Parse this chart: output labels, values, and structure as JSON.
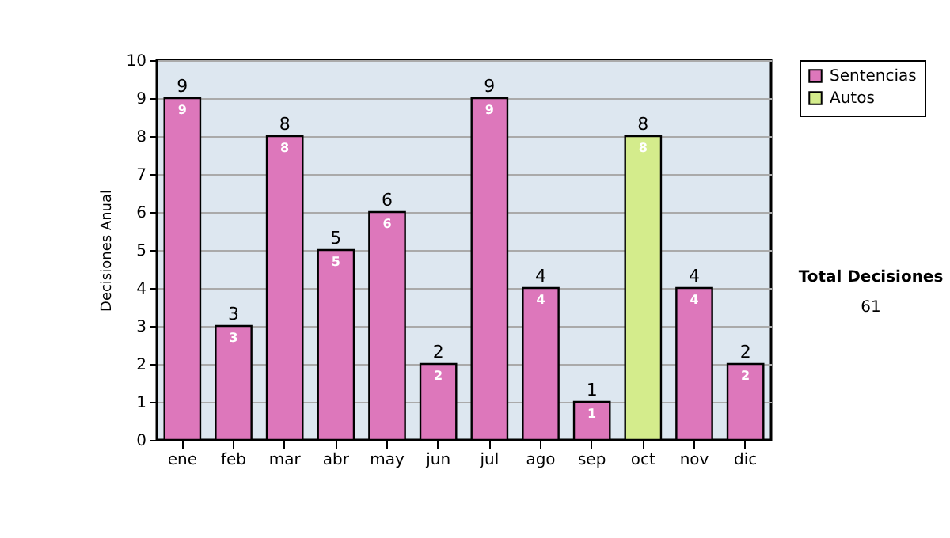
{
  "chart_data": {
    "type": "bar",
    "ylabel": "Decisiones Anual",
    "categories": [
      "ene",
      "feb",
      "mar",
      "abr",
      "may",
      "jun",
      "jul",
      "ago",
      "sep",
      "oct",
      "nov",
      "dic"
    ],
    "series": [
      {
        "name": "Sentencias",
        "color": "#dd77bb",
        "values": [
          9,
          3,
          8,
          5,
          6,
          2,
          9,
          4,
          1,
          null,
          4,
          2
        ]
      },
      {
        "name": "Autos",
        "color": "#d4ec8c",
        "values": [
          null,
          null,
          null,
          null,
          null,
          null,
          null,
          null,
          null,
          8,
          null,
          null
        ]
      }
    ],
    "ylim": [
      0,
      10
    ],
    "yticks": [
      0,
      1,
      2,
      3,
      4,
      5,
      6,
      7,
      8,
      9,
      10
    ],
    "grid": "y",
    "legend": "right",
    "data_labels": true,
    "annotations": [
      {
        "text": "9",
        "x": "ene",
        "y": 9
      },
      {
        "text": "3",
        "x": "feb",
        "y": 3
      },
      {
        "text": "8",
        "x": "mar",
        "y": 8
      },
      {
        "text": "5",
        "x": "abr",
        "y": 5
      },
      {
        "text": "6",
        "x": "may",
        "y": 6
      },
      {
        "text": "2",
        "x": "jun",
        "y": 2
      },
      {
        "text": "9",
        "x": "jul",
        "y": 9
      },
      {
        "text": "4",
        "x": "ago",
        "y": 4
      },
      {
        "text": "1",
        "x": "sep",
        "y": 1
      },
      {
        "text": "8",
        "x": "oct",
        "y": 8
      },
      {
        "text": "4",
        "x": "nov",
        "y": 4
      },
      {
        "text": "2",
        "x": "dic",
        "y": 2
      },
      "Total Decisiones",
      "61"
    ]
  }
}
